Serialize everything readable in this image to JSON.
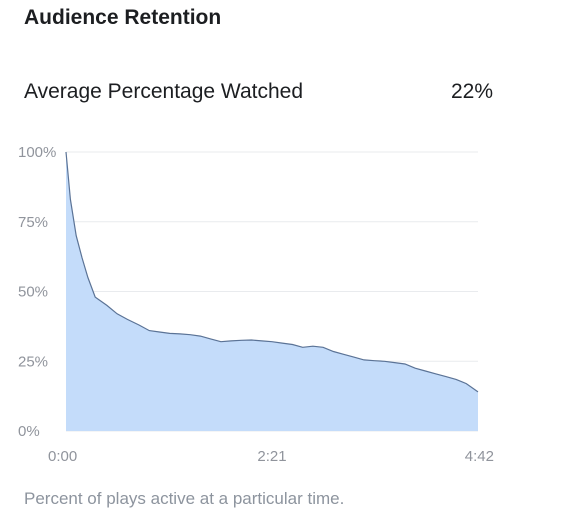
{
  "card": {
    "title": "Audience Retention",
    "metric_label": "Average Percentage Watched",
    "metric_value": "22%",
    "caption": "Percent of plays active at a particular time."
  },
  "colors": {
    "area_fill": "#c4dcfa",
    "line": "#5b7396",
    "grid": "#e9ebee",
    "tick_text": "#90949c"
  },
  "chart_data": {
    "type": "area",
    "title": "",
    "xlabel": "",
    "ylabel": "",
    "x_unit": "seconds",
    "xlim": [
      0,
      282
    ],
    "ylim": [
      0,
      100
    ],
    "x_ticks": [
      {
        "value": 0,
        "label": "0:00"
      },
      {
        "value": 141,
        "label": "2:21"
      },
      {
        "value": 282,
        "label": "4:42"
      }
    ],
    "y_ticks": [
      {
        "value": 0,
        "label": "0%"
      },
      {
        "value": 25,
        "label": "25%"
      },
      {
        "value": 50,
        "label": "50%"
      },
      {
        "value": 75,
        "label": "75%"
      },
      {
        "value": 100,
        "label": "100%"
      }
    ],
    "grid": true,
    "legend": "none",
    "series": [
      {
        "x": [
          0,
          3,
          7,
          11,
          15,
          20,
          28,
          35,
          42,
          50,
          57,
          64,
          71,
          78,
          85,
          92,
          99,
          106,
          113,
          120,
          127,
          134,
          141,
          148,
          155,
          162,
          169,
          176,
          183,
          190,
          197,
          204,
          211,
          218,
          225,
          232,
          239,
          246,
          253,
          260,
          267,
          274,
          282
        ],
        "values": [
          100,
          83,
          70,
          62,
          55,
          48,
          45,
          42,
          40,
          38,
          36,
          35.5,
          35,
          34.8,
          34.5,
          34,
          33,
          32,
          32.3,
          32.5,
          32.6,
          32.3,
          32,
          31.5,
          31,
          30,
          30.4,
          30,
          28.5,
          27.5,
          26.5,
          25.5,
          25.2,
          25,
          24.5,
          24,
          22.5,
          21.5,
          20.5,
          19.5,
          18.5,
          17,
          14
        ]
      }
    ]
  }
}
